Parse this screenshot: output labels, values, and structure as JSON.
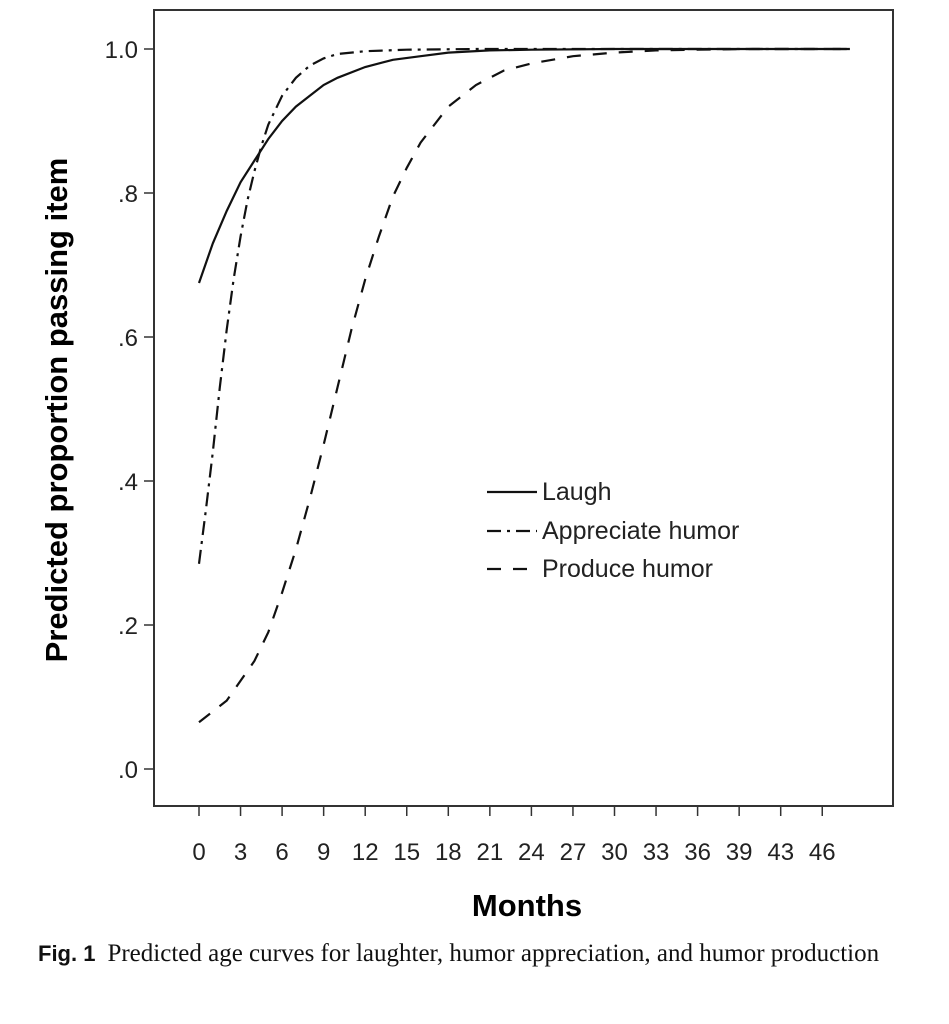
{
  "chart_data": {
    "type": "line",
    "xlabel": "Months",
    "ylabel": "Predicted proportion passing item",
    "x_ticks": [
      "0",
      "3",
      "6",
      "9",
      "12",
      "15",
      "18",
      "21",
      "24",
      "27",
      "30",
      "33",
      "36",
      "39",
      "43",
      "46"
    ],
    "y_ticks": [
      ".0",
      ".2",
      ".4",
      ".6",
      ".8",
      "1.0"
    ],
    "xlim": [
      0,
      47
    ],
    "ylim": [
      0,
      1
    ],
    "legend_position": "center-right",
    "grid": false,
    "series": [
      {
        "name": "Laugh",
        "dash": "solid",
        "x": [
          0,
          1,
          2,
          3,
          4,
          5,
          6,
          7,
          8,
          9,
          10,
          12,
          14,
          16,
          18,
          21,
          24,
          30,
          36,
          47
        ],
        "y": [
          0.675,
          0.73,
          0.775,
          0.815,
          0.845,
          0.875,
          0.9,
          0.92,
          0.935,
          0.95,
          0.96,
          0.975,
          0.985,
          0.99,
          0.995,
          0.998,
          0.999,
          1.0,
          1.0,
          1.0
        ]
      },
      {
        "name": "Appreciate humor",
        "dash": "dashdot",
        "x": [
          0,
          0.5,
          1,
          1.5,
          2,
          2.5,
          3,
          3.5,
          4,
          4.5,
          5,
          6,
          7,
          8,
          9,
          10,
          12,
          15,
          20,
          30,
          47
        ],
        "y": [
          0.285,
          0.36,
          0.44,
          0.53,
          0.61,
          0.68,
          0.74,
          0.79,
          0.83,
          0.865,
          0.895,
          0.935,
          0.96,
          0.977,
          0.987,
          0.993,
          0.997,
          0.999,
          1.0,
          1.0,
          1.0
        ]
      },
      {
        "name": "Produce humor",
        "dash": "dashed",
        "x": [
          0,
          2,
          4,
          5,
          6,
          7,
          8,
          9,
          10,
          11,
          12,
          13,
          14,
          15,
          16,
          18,
          20,
          22,
          24,
          27,
          30,
          33,
          36,
          40,
          47
        ],
        "y": [
          0.065,
          0.095,
          0.15,
          0.19,
          0.245,
          0.305,
          0.375,
          0.45,
          0.53,
          0.61,
          0.68,
          0.74,
          0.795,
          0.835,
          0.87,
          0.92,
          0.95,
          0.97,
          0.98,
          0.99,
          0.995,
          0.998,
          0.999,
          1.0,
          1.0
        ]
      }
    ]
  },
  "caption": {
    "label": "Fig. 1",
    "text": "Predicted age curves for laughter, humor appreciation, and humor production"
  }
}
